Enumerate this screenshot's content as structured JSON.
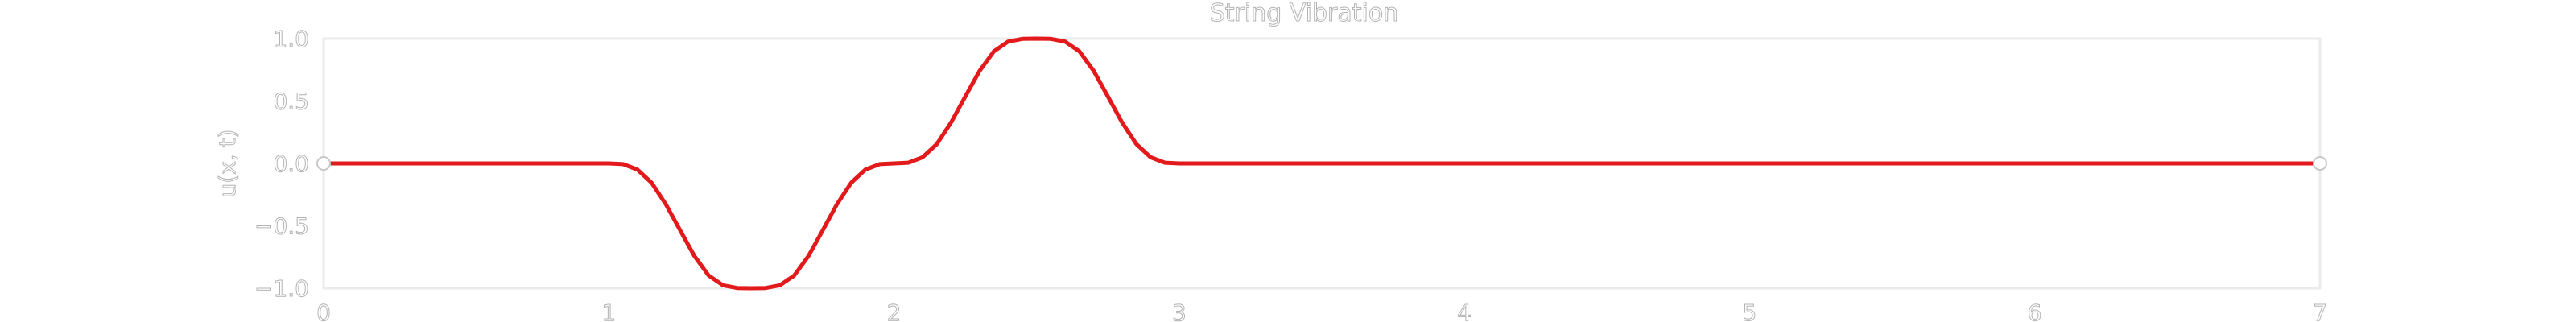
{
  "chart_data": {
    "type": "line",
    "title": "String Vibration",
    "xlabel": "",
    "ylabel": "u(x, t)",
    "xlim": [
      0,
      7
    ],
    "ylim": [
      -1.0,
      1.0
    ],
    "x_ticks": [
      0,
      1,
      2,
      3,
      4,
      5,
      6,
      7
    ],
    "x_tick_labels": [
      "0",
      "1",
      "2",
      "3",
      "4",
      "5",
      "6",
      "7"
    ],
    "y_ticks": [
      1.0,
      0.5,
      0.0,
      -0.5,
      -1.0
    ],
    "y_tick_labels": [
      "1.0",
      "0.5",
      "0.0",
      "−0.5",
      "−1.0"
    ],
    "grid": false,
    "colors": {
      "line": "#e31a1c",
      "frame": "#ebebeb",
      "text": "#b3b3b3",
      "endpoint_fill": "#ffffff",
      "endpoint_stroke": "#c8c8c8"
    },
    "series": [
      {
        "name": "u(x, t)",
        "x": [
          0,
          1.0,
          1.05,
          1.1,
          1.15,
          1.2,
          1.25,
          1.3,
          1.35,
          1.4,
          1.45,
          1.5,
          1.55,
          1.6,
          1.65,
          1.7,
          1.75,
          1.8,
          1.85,
          1.9,
          1.95,
          2.0,
          2.05,
          2.1,
          2.15,
          2.2,
          2.25,
          2.3,
          2.35,
          2.4,
          2.45,
          2.5,
          2.55,
          2.6,
          2.65,
          2.7,
          2.75,
          2.8,
          2.85,
          2.9,
          2.95,
          3.0,
          7.0
        ],
        "y": [
          0,
          0,
          -0.006,
          -0.049,
          -0.155,
          -0.327,
          -0.536,
          -0.742,
          -0.898,
          -0.976,
          -0.998,
          -1.0,
          -0.998,
          -0.976,
          -0.898,
          -0.742,
          -0.536,
          -0.327,
          -0.155,
          -0.049,
          -0.006,
          0,
          0.006,
          0.049,
          0.155,
          0.327,
          0.536,
          0.742,
          0.898,
          0.976,
          0.998,
          1.0,
          0.998,
          0.976,
          0.898,
          0.742,
          0.536,
          0.327,
          0.155,
          0.049,
          0.006,
          0,
          0
        ],
        "endpoints": [
          [
            0,
            0
          ],
          [
            7,
            0
          ]
        ]
      }
    ]
  }
}
